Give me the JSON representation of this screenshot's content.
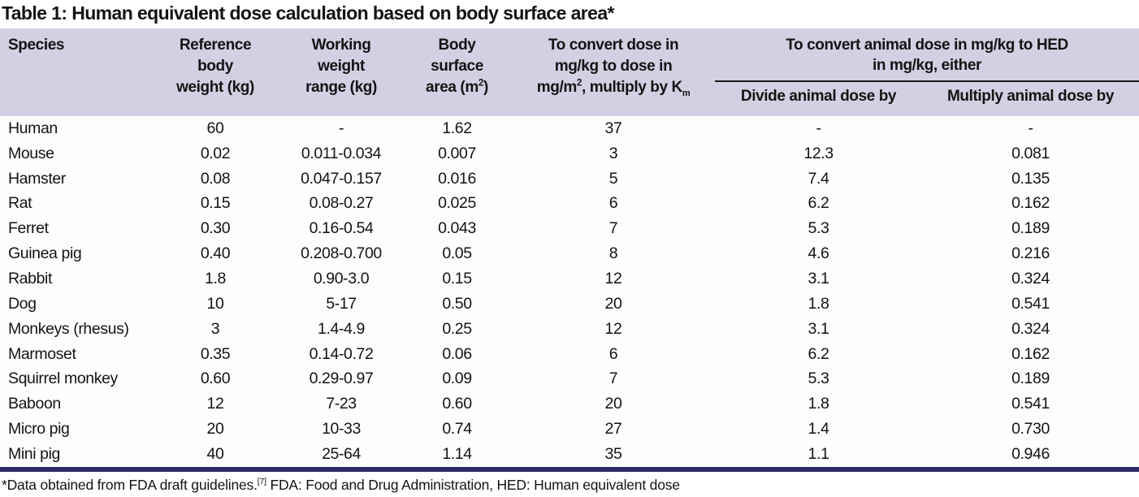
{
  "title": "Table 1: Human equivalent dose calculation based on body surface area*",
  "colors": {
    "header_bg": "#d2d0e2",
    "accent_line": "#2e2a66",
    "text": "#141414",
    "body_bg": "#fdfdfb"
  },
  "table": {
    "header": {
      "species": "Species",
      "reference": [
        "Reference",
        "body",
        "weight (kg)"
      ],
      "working": [
        "Working",
        "weight",
        "range (kg)"
      ],
      "surface": {
        "l1": "Body",
        "l2": "surface",
        "l3a": "area (m",
        "l3sup": "2",
        "l3b": ")"
      },
      "convert": {
        "l1": "To convert dose in",
        "l2": "mg/kg to dose in",
        "l3a": "mg/m",
        "l3sup": "2",
        "l3b": ", multiply by K",
        "l3sub": "m"
      },
      "group": {
        "l1": "To convert animal dose in mg/kg to HED",
        "l2": "in mg/kg, either"
      },
      "divide": "Divide animal dose by",
      "multiply": "Multiply animal dose by"
    },
    "column_keys": [
      "species",
      "ref_weight",
      "working_range",
      "body_surface",
      "km_factor",
      "divide_by",
      "multiply_by"
    ],
    "rows": [
      [
        "Human",
        "60",
        "-",
        "1.62",
        "37",
        "-",
        "-"
      ],
      [
        "Mouse",
        "0.02",
        "0.011-0.034",
        "0.007",
        "3",
        "12.3",
        "0.081"
      ],
      [
        "Hamster",
        "0.08",
        "0.047-0.157",
        "0.016",
        "5",
        "7.4",
        "0.135"
      ],
      [
        "Rat",
        "0.15",
        "0.08-0.27",
        "0.025",
        "6",
        "6.2",
        "0.162"
      ],
      [
        "Ferret",
        "0.30",
        "0.16-0.54",
        "0.043",
        "7",
        "5.3",
        "0.189"
      ],
      [
        "Guinea pig",
        "0.40",
        "0.208-0.700",
        "0.05",
        "8",
        "4.6",
        "0.216"
      ],
      [
        "Rabbit",
        "1.8",
        "0.90-3.0",
        "0.15",
        "12",
        "3.1",
        "0.324"
      ],
      [
        "Dog",
        "10",
        "5-17",
        "0.50",
        "20",
        "1.8",
        "0.541"
      ],
      [
        "Monkeys (rhesus)",
        "3",
        "1.4-4.9",
        "0.25",
        "12",
        "3.1",
        "0.324"
      ],
      [
        "Marmoset",
        "0.35",
        "0.14-0.72",
        "0.06",
        "6",
        "6.2",
        "0.162"
      ],
      [
        "Squirrel monkey",
        "0.60",
        "0.29-0.97",
        "0.09",
        "7",
        "5.3",
        "0.189"
      ],
      [
        "Baboon",
        "12",
        "7-23",
        "0.60",
        "20",
        "1.8",
        "0.541"
      ],
      [
        "Micro pig",
        "20",
        "10-33",
        "0.74",
        "27",
        "1.4",
        "0.730"
      ],
      [
        "Mini pig",
        "40",
        "25-64",
        "1.14",
        "35",
        "1.1",
        "0.946"
      ]
    ]
  },
  "footnote": {
    "pre": "*Data obtained from FDA draft guidelines.",
    "ref": "[7]",
    "post": " FDA: Food and Drug Administration, HED: Human equivalent dose"
  }
}
